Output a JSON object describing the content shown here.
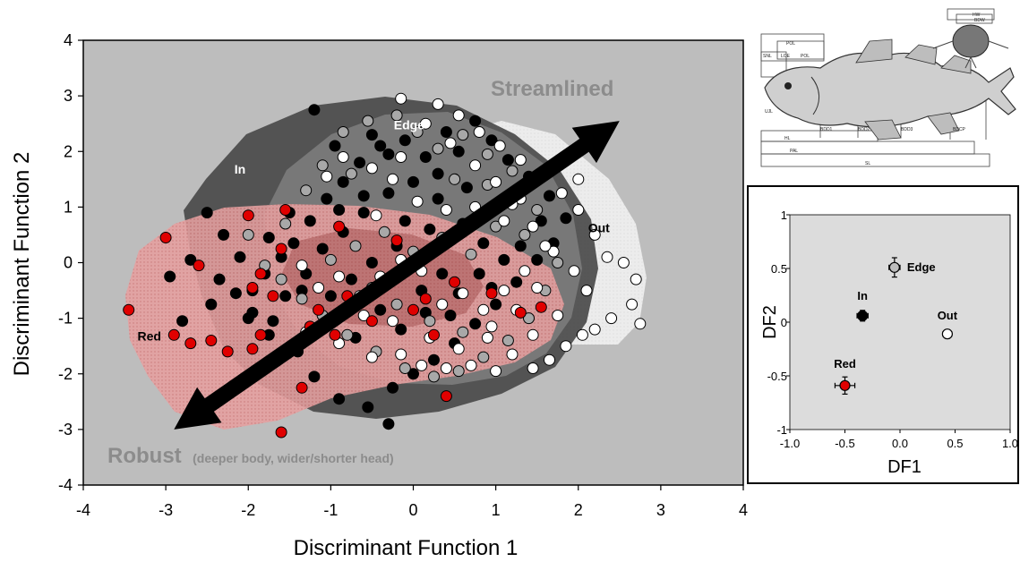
{
  "chart_data": [
    {
      "type": "scatter",
      "xlabel": "Discriminant Function 1",
      "ylabel": "Discriminant Function 2",
      "xlim": [
        -4,
        4
      ],
      "ylim": [
        -4,
        4
      ],
      "xticks": [
        "-4",
        "-3",
        "-2",
        "-1",
        "0",
        "1",
        "2",
        "3",
        "4"
      ],
      "yticks": [
        "4",
        "3",
        "2",
        "1",
        "0",
        "-1",
        "-2",
        "-3",
        "-4"
      ],
      "grid": false,
      "colors": {
        "background": "#bdbdbd",
        "In": "#000000",
        "Edge": "#a8a8a8",
        "Out": "#ffffff",
        "Red": "#e00000",
        "region_in": "#4d4d4d",
        "region_edge": "#7a7a7a",
        "region_out": "#eeeeee",
        "region_red": "#e7a5a5"
      },
      "region_labels": [
        {
          "text": "In",
          "x": -2.1,
          "y": 1.6
        },
        {
          "text": "Edge",
          "x": -0.05,
          "y": 2.4
        },
        {
          "text": "Out",
          "x": 2.25,
          "y": 0.55
        },
        {
          "text": "Red",
          "x": -3.2,
          "y": -1.4
        }
      ],
      "annotations": {
        "streamlined": "Streamlined",
        "robust": "Robust",
        "robust_note": "(deeper body, wider/shorter head)"
      },
      "arrow": {
        "x1": -2.9,
        "y1": -3.0,
        "x2": 2.5,
        "y2": 2.55
      },
      "series": [
        {
          "name": "In",
          "points": [
            [
              -2.5,
              0.9
            ],
            [
              -2.3,
              0.5
            ],
            [
              -2.1,
              0.1
            ],
            [
              -2.35,
              -0.3
            ],
            [
              -2.15,
              -0.55
            ],
            [
              -1.95,
              -0.9
            ],
            [
              -1.7,
              -1.05
            ],
            [
              -1.55,
              -0.6
            ],
            [
              -1.3,
              -0.2
            ],
            [
              -1.45,
              0.35
            ],
            [
              -1.25,
              0.75
            ],
            [
              -1.05,
              1.15
            ],
            [
              -0.85,
              1.45
            ],
            [
              -0.65,
              1.8
            ],
            [
              -0.95,
              2.1
            ],
            [
              -0.5,
              2.3
            ],
            [
              -0.3,
              1.95
            ],
            [
              -0.1,
              2.2
            ],
            [
              0.15,
              1.9
            ],
            [
              0.4,
              2.35
            ],
            [
              0.55,
              2.0
            ],
            [
              0.75,
              2.55
            ],
            [
              0.95,
              2.2
            ],
            [
              1.15,
              1.85
            ],
            [
              1.4,
              1.55
            ],
            [
              1.65,
              1.2
            ],
            [
              1.85,
              0.8
            ],
            [
              1.7,
              0.35
            ],
            [
              1.5,
              0.05
            ],
            [
              1.25,
              -0.35
            ],
            [
              1.0,
              -0.75
            ],
            [
              0.75,
              -1.1
            ],
            [
              0.5,
              -1.45
            ],
            [
              0.25,
              -1.75
            ],
            [
              0.0,
              -2.0
            ],
            [
              -0.25,
              -2.25
            ],
            [
              -0.55,
              -2.6
            ],
            [
              -0.3,
              -2.9
            ],
            [
              -0.9,
              -2.45
            ],
            [
              -1.2,
              -2.05
            ],
            [
              -1.4,
              -1.6
            ],
            [
              -1.75,
              -1.3
            ],
            [
              -2.0,
              -1.0
            ],
            [
              -2.8,
              -1.05
            ],
            [
              -2.95,
              -0.25
            ],
            [
              -2.7,
              0.05
            ],
            [
              -1.75,
              0.45
            ],
            [
              -1.2,
              2.75
            ],
            [
              -0.4,
              2.1
            ],
            [
              0.3,
              1.15
            ],
            [
              0.6,
              0.7
            ],
            [
              0.85,
              0.35
            ],
            [
              1.1,
              0.05
            ],
            [
              -0.2,
              0.3
            ],
            [
              -0.5,
              0.0
            ],
            [
              -0.75,
              -0.3
            ],
            [
              -1.0,
              -0.6
            ],
            [
              -0.4,
              -0.85
            ],
            [
              0.1,
              -0.5
            ],
            [
              0.35,
              -0.2
            ],
            [
              0.55,
              -0.55
            ],
            [
              0.8,
              -0.2
            ],
            [
              -0.1,
              0.75
            ],
            [
              0.2,
              0.6
            ],
            [
              -0.6,
              0.9
            ],
            [
              -0.85,
              0.55
            ],
            [
              -1.1,
              0.25
            ],
            [
              -1.6,
              0.1
            ],
            [
              -1.8,
              -0.2
            ],
            [
              -1.35,
              -0.5
            ],
            [
              -0.95,
              -0.95
            ],
            [
              -0.7,
              -1.35
            ],
            [
              -0.15,
              -1.2
            ],
            [
              0.15,
              -0.9
            ],
            [
              0.45,
              -0.95
            ],
            [
              0.95,
              -0.45
            ],
            [
              1.3,
              0.3
            ],
            [
              1.55,
              0.75
            ],
            [
              0.95,
              1.0
            ],
            [
              0.65,
              1.35
            ],
            [
              0.3,
              1.6
            ],
            [
              0.0,
              1.45
            ],
            [
              -0.3,
              1.25
            ],
            [
              -0.6,
              1.2
            ],
            [
              -0.9,
              0.95
            ],
            [
              -1.5,
              0.9
            ],
            [
              -1.95,
              -0.5
            ],
            [
              -2.45,
              -0.75
            ]
          ]
        },
        {
          "name": "Edge",
          "points": [
            [
              -2.0,
              0.5
            ],
            [
              -1.8,
              -0.05
            ],
            [
              -1.55,
              0.7
            ],
            [
              -1.3,
              1.3
            ],
            [
              -1.1,
              1.75
            ],
            [
              -0.85,
              2.35
            ],
            [
              -0.55,
              2.55
            ],
            [
              -0.2,
              2.65
            ],
            [
              0.05,
              2.35
            ],
            [
              0.3,
              2.05
            ],
            [
              0.6,
              2.3
            ],
            [
              0.9,
              1.95
            ],
            [
              1.2,
              1.65
            ],
            [
              1.5,
              0.95
            ],
            [
              1.75,
              0.0
            ],
            [
              1.6,
              -0.5
            ],
            [
              1.4,
              -1.0
            ],
            [
              1.15,
              -1.4
            ],
            [
              0.85,
              -1.7
            ],
            [
              0.55,
              -1.95
            ],
            [
              0.25,
              -2.05
            ],
            [
              -0.1,
              -1.9
            ],
            [
              -0.45,
              -1.6
            ],
            [
              -0.8,
              -1.3
            ],
            [
              -1.1,
              -0.95
            ],
            [
              -1.35,
              -0.65
            ],
            [
              -1.6,
              -0.3
            ],
            [
              -0.7,
              0.3
            ],
            [
              -0.35,
              0.55
            ],
            [
              0.0,
              0.2
            ],
            [
              0.35,
              0.45
            ],
            [
              0.7,
              0.15
            ],
            [
              1.0,
              0.65
            ],
            [
              -0.5,
              -0.45
            ],
            [
              -0.2,
              -0.75
            ],
            [
              0.2,
              -1.05
            ],
            [
              0.6,
              -1.25
            ],
            [
              -1.0,
              0.05
            ],
            [
              -0.75,
              1.6
            ],
            [
              0.5,
              1.5
            ],
            [
              0.9,
              1.4
            ],
            [
              1.35,
              0.5
            ]
          ]
        },
        {
          "name": "Out",
          "points": [
            [
              -0.15,
              2.95
            ],
            [
              0.3,
              2.85
            ],
            [
              0.55,
              2.65
            ],
            [
              0.8,
              2.35
            ],
            [
              1.05,
              2.1
            ],
            [
              1.3,
              1.85
            ],
            [
              1.55,
              1.55
            ],
            [
              1.8,
              1.25
            ],
            [
              2.0,
              0.95
            ],
            [
              2.2,
              0.5
            ],
            [
              2.35,
              0.1
            ],
            [
              2.55,
              0.0
            ],
            [
              2.7,
              -0.3
            ],
            [
              2.65,
              -0.75
            ],
            [
              2.75,
              -1.1
            ],
            [
              2.4,
              -1.0
            ],
            [
              2.2,
              -1.2
            ],
            [
              2.05,
              -1.3
            ],
            [
              1.85,
              -1.5
            ],
            [
              1.65,
              -1.75
            ],
            [
              1.45,
              -1.9
            ],
            [
              1.2,
              -1.65
            ],
            [
              1.0,
              -1.95
            ],
            [
              0.7,
              -1.85
            ],
            [
              0.4,
              -1.9
            ],
            [
              0.1,
              -1.85
            ],
            [
              -0.15,
              -1.65
            ],
            [
              -0.5,
              -1.7
            ],
            [
              -0.9,
              -1.45
            ],
            [
              -1.3,
              -1.25
            ],
            [
              -0.6,
              -0.95
            ],
            [
              -0.25,
              -1.05
            ],
            [
              0.2,
              -1.35
            ],
            [
              0.55,
              -1.55
            ],
            [
              0.95,
              -1.15
            ],
            [
              1.25,
              -0.85
            ],
            [
              1.5,
              -0.45
            ],
            [
              1.7,
              0.2
            ],
            [
              1.95,
              -0.15
            ],
            [
              2.1,
              -0.5
            ],
            [
              1.1,
              0.75
            ],
            [
              1.3,
              1.15
            ],
            [
              0.75,
              1.0
            ],
            [
              0.4,
              0.95
            ],
            [
              0.05,
              1.1
            ],
            [
              -0.25,
              1.5
            ],
            [
              -0.5,
              1.7
            ],
            [
              -0.85,
              1.9
            ],
            [
              -1.05,
              1.55
            ],
            [
              0.15,
              2.5
            ],
            [
              0.45,
              2.15
            ],
            [
              0.75,
              1.75
            ],
            [
              1.0,
              1.45
            ],
            [
              1.2,
              1.05
            ],
            [
              1.45,
              0.65
            ],
            [
              1.6,
              0.3
            ],
            [
              1.35,
              -0.15
            ],
            [
              1.1,
              -0.5
            ],
            [
              0.85,
              -0.85
            ],
            [
              0.6,
              -0.55
            ],
            [
              0.35,
              -0.75
            ],
            [
              0.1,
              -0.15
            ],
            [
              -0.15,
              0.05
            ],
            [
              -0.4,
              -0.25
            ],
            [
              -0.65,
              -0.6
            ],
            [
              -0.9,
              -0.25
            ],
            [
              -1.15,
              -0.45
            ],
            [
              -1.35,
              -0.05
            ],
            [
              -0.45,
              0.85
            ],
            [
              -0.15,
              1.9
            ],
            [
              2.0,
              1.5
            ],
            [
              1.45,
              -1.3
            ],
            [
              0.9,
              -1.35
            ],
            [
              1.75,
              -0.95
            ]
          ]
        },
        {
          "name": "Red",
          "points": [
            [
              -3.45,
              -0.85
            ],
            [
              -2.6,
              -0.05
            ],
            [
              -2.7,
              -1.45
            ],
            [
              -2.45,
              -1.4
            ],
            [
              -2.25,
              -1.6
            ],
            [
              -1.95,
              -1.55
            ],
            [
              -1.85,
              -1.3
            ],
            [
              -1.7,
              -0.6
            ],
            [
              -1.95,
              -0.45
            ],
            [
              -1.85,
              -0.2
            ],
            [
              -2.0,
              0.85
            ],
            [
              -3.0,
              0.45
            ],
            [
              -1.6,
              -3.05
            ],
            [
              -1.35,
              -2.25
            ],
            [
              0.4,
              -2.4
            ],
            [
              -1.15,
              -0.85
            ],
            [
              -0.8,
              -0.6
            ],
            [
              -0.5,
              -1.05
            ],
            [
              -0.2,
              0.4
            ],
            [
              0.15,
              -0.65
            ],
            [
              0.5,
              -0.35
            ],
            [
              0.95,
              -0.55
            ],
            [
              1.3,
              -0.9
            ],
            [
              1.55,
              -0.8
            ],
            [
              -1.55,
              0.95
            ],
            [
              -1.6,
              0.25
            ],
            [
              -0.9,
              0.65
            ],
            [
              0.0,
              -0.85
            ],
            [
              0.25,
              -1.3
            ],
            [
              -1.25,
              -1.15
            ],
            [
              -0.95,
              -1.3
            ],
            [
              -2.9,
              -1.3
            ]
          ]
        }
      ]
    },
    {
      "type": "scatter",
      "xlabel": "DF1",
      "ylabel": "DF2",
      "xlim": [
        -1.0,
        1.0
      ],
      "ylim": [
        -1.0,
        1.0
      ],
      "xticks": [
        "-1.0",
        "-0.5",
        "0.0",
        "0.5",
        "1.0"
      ],
      "yticks": [
        "1",
        "0.5",
        "0",
        "-0.5",
        "-1"
      ],
      "grid": false,
      "points": [
        {
          "name": "Edge",
          "x": -0.05,
          "y": 0.51,
          "xerr": 0.05,
          "yerr": 0.09,
          "color": "#bdbdbd"
        },
        {
          "name": "In",
          "x": -0.34,
          "y": 0.06,
          "xerr": 0.05,
          "yerr": 0.05,
          "color": "#000000"
        },
        {
          "name": "Out",
          "x": 0.43,
          "y": -0.11,
          "xerr": 0.04,
          "yerr": 0.04,
          "color": "#ffffff"
        },
        {
          "name": "Red",
          "x": -0.5,
          "y": -0.59,
          "xerr": 0.09,
          "yerr": 0.08,
          "color": "#e00000"
        }
      ]
    }
  ],
  "fish_figure": {
    "labels": [
      "POL",
      "SNL",
      "LOE",
      "POL",
      "UJL",
      "HL",
      "PAL",
      "SL",
      "BDD1",
      "BDD2",
      "BDD3",
      "BDCP",
      "HW",
      "BDW"
    ]
  }
}
